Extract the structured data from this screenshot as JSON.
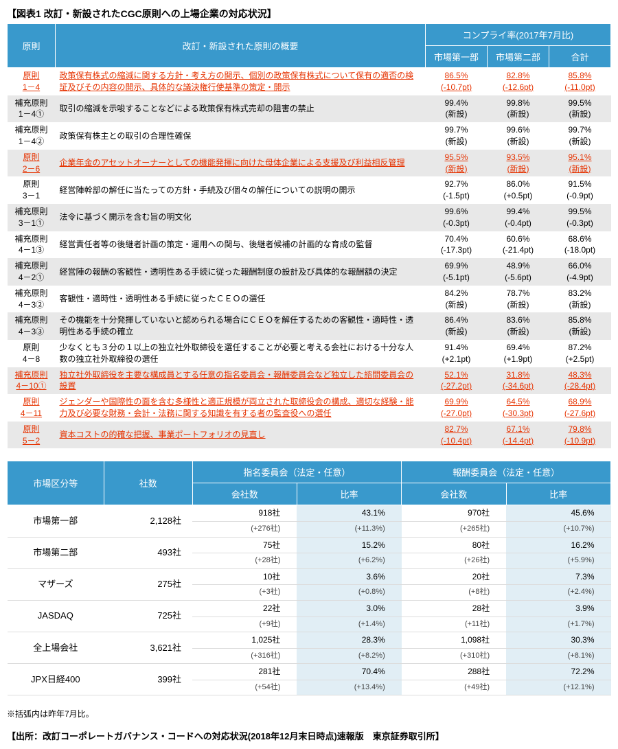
{
  "title": "【図表1 改訂・新設されたCGC原則への上場企業の対応状況】",
  "table1": {
    "headers": {
      "principle": "原則",
      "summary": "改訂・新設された原則の概要",
      "compliance_group": "コンプライ率(2017年7月比)",
      "market1": "市場第一部",
      "market2": "市場第二部",
      "total": "合計"
    },
    "rows": [
      {
        "principle": "原則\n1－4",
        "summary": "政策保有株式の縮減に関する方針・考え方の開示、個別の政策保有株式について保有の適否の検証及びその内容の開示、具体的な議決権行使基準の策定・開示",
        "m1": "86.5%",
        "m1d": "(-10.7pt)",
        "m2": "82.8%",
        "m2d": "(-12.6pt)",
        "t": "85.8%",
        "td": "(-11.0pt)",
        "hl": true
      },
      {
        "principle": "補充原則\n1－4①",
        "summary": "取引の縮減を示唆することなどによる政策保有株式売却の阻害の禁止",
        "m1": "99.4%",
        "m1d": "(新設)",
        "m2": "99.8%",
        "m2d": "(新設)",
        "t": "99.5%",
        "td": "(新設)"
      },
      {
        "principle": "補充原則\n1－4②",
        "summary": "政策保有株主との取引の合理性確保",
        "m1": "99.7%",
        "m1d": "(新設)",
        "m2": "99.6%",
        "m2d": "(新設)",
        "t": "99.7%",
        "td": "(新設)"
      },
      {
        "principle": "原則\n2－6",
        "summary": "企業年金のアセットオーナーとしての機能発揮に向けた母体企業による支援及び利益相反管理",
        "m1": "95.5%",
        "m1d": "(新設)",
        "m2": "93.5%",
        "m2d": "(新設)",
        "t": "95.1%",
        "td": "(新設)",
        "hl": true
      },
      {
        "principle": "原則\n3－1",
        "summary": "経営陣幹部の解任に当たっての方針・手続及び個々の解任についての説明の開示",
        "m1": "92.7%",
        "m1d": "(-1.5pt)",
        "m2": "86.0%",
        "m2d": "(+0.5pt)",
        "t": "91.5%",
        "td": "(-0.9pt)"
      },
      {
        "principle": "補充原則\n3－1①",
        "summary": "法令に基づく開示を含む旨の明文化",
        "m1": "99.6%",
        "m1d": "(-0.3pt)",
        "m2": "99.4%",
        "m2d": "(-0.4pt)",
        "t": "99.5%",
        "td": "(-0.3pt)"
      },
      {
        "principle": "補充原則\n4－1③",
        "summary": "経営責任者等の後継者計画の策定・運用への関与、後継者候補の計画的な育成の監督",
        "m1": "70.4%",
        "m1d": "(-17.3pt)",
        "m2": "60.6%",
        "m2d": "(-21.4pt)",
        "t": "68.6%",
        "td": "(-18.0pt)"
      },
      {
        "principle": "補充原則\n4－2①",
        "summary": "経営陣の報酬の客観性・透明性ある手続に従った報酬制度の設計及び具体的な報酬額の決定",
        "m1": "69.9%",
        "m1d": "(-5.1pt)",
        "m2": "48.9%",
        "m2d": "(-5.6pt)",
        "t": "66.0%",
        "td": "(-4.9pt)"
      },
      {
        "principle": "補充原則\n4－3②",
        "summary": "客観性・適時性・透明性ある手続に従ったＣＥＯの選任",
        "m1": "84.2%",
        "m1d": "(新設)",
        "m2": "78.7%",
        "m2d": "(新設)",
        "t": "83.2%",
        "td": "(新設)"
      },
      {
        "principle": "補充原則\n4－3③",
        "summary": "その機能を十分発揮していないと認められる場合にＣＥＯを解任するための客観性・適時性・透明性ある手続の確立",
        "m1": "86.4%",
        "m1d": "(新設)",
        "m2": "83.6%",
        "m2d": "(新設)",
        "t": "85.8%",
        "td": "(新設)"
      },
      {
        "principle": "原則\n4－8",
        "summary": "少なくとも３分の１以上の独立社外取締役を選任することが必要と考える会社における十分な人数の独立社外取締役の選任",
        "m1": "91.4%",
        "m1d": "(+2.1pt)",
        "m2": "69.4%",
        "m2d": "(+1.9pt)",
        "t": "87.2%",
        "td": "(+2.5pt)"
      },
      {
        "principle": "補充原則\n4－10①",
        "summary": "独立社外取締役を主要な構成員とする任意の指名委員会・報酬委員会など独立した諮問委員会の設置",
        "m1": "52.1%",
        "m1d": "(-27.2pt)",
        "m2": "31.8%",
        "m2d": "(-34.6pt)",
        "t": "48.3%",
        "td": "(-28.4pt)",
        "hl": true
      },
      {
        "principle": "原則\n4－11",
        "summary": "ジェンダーや国際性の面を含む多様性と適正規模が両立された取締役会の構成、適切な経験・能力及び必要な財務・会計・法務に関する知識を有する者の監査役への選任",
        "m1": "69.9%",
        "m1d": "(-27.0pt)",
        "m2": "64.5%",
        "m2d": "(-30.3pt)",
        "t": "68.9%",
        "td": "(-27.6pt)",
        "hl": true
      },
      {
        "principle": "原則\n5－2",
        "summary": "資本コストの的確な把握、事業ポートフォリオの見直し",
        "m1": "82.7%",
        "m1d": "(-10.4pt)",
        "m2": "67.1%",
        "m2d": "(-14.4pt)",
        "t": "79.8%",
        "td": "(-10.9pt)",
        "hl": true
      }
    ]
  },
  "table2": {
    "headers": {
      "market": "市場区分等",
      "count": "社数",
      "nom_group": "指名委員会（法定・任意）",
      "comp_group": "報酬委員会（法定・任意）",
      "companies": "会社数",
      "ratio": "比率"
    },
    "rows": [
      {
        "market": "市場第一部",
        "count": "2,128社",
        "nc": "918社",
        "nr": "43.1%",
        "ncd": "(+276社)",
        "nrd": "(+11.3%)",
        "cc": "970社",
        "cr": "45.6%",
        "ccd": "(+265社)",
        "crd": "(+10.7%)"
      },
      {
        "market": "市場第二部",
        "count": "493社",
        "nc": "75社",
        "nr": "15.2%",
        "ncd": "(+28社)",
        "nrd": "(+6.2%)",
        "cc": "80社",
        "cr": "16.2%",
        "ccd": "(+26社)",
        "crd": "(+5.9%)"
      },
      {
        "market": "マザーズ",
        "count": "275社",
        "nc": "10社",
        "nr": "3.6%",
        "ncd": "(+3社)",
        "nrd": "(+0.8%)",
        "cc": "20社",
        "cr": "7.3%",
        "ccd": "(+8社)",
        "crd": "(+2.4%)"
      },
      {
        "market": "JASDAQ",
        "count": "725社",
        "nc": "22社",
        "nr": "3.0%",
        "ncd": "(+9社)",
        "nrd": "(+1.4%)",
        "cc": "28社",
        "cr": "3.9%",
        "ccd": "(+11社)",
        "crd": "(+1.7%)"
      },
      {
        "market": "全上場会社",
        "count": "3,621社",
        "nc": "1,025社",
        "nr": "28.3%",
        "ncd": "(+316社)",
        "nrd": "(+8.2%)",
        "cc": "1,098社",
        "cr": "30.3%",
        "ccd": "(+310社)",
        "crd": "(+8.1%)"
      },
      {
        "market": "JPX日経400",
        "count": "399社",
        "nc": "281社",
        "nr": "70.4%",
        "ncd": "(+54社)",
        "nrd": "(+13.4%)",
        "cc": "288社",
        "cr": "72.2%",
        "ccd": "(+49社)",
        "crd": "(+12.1%)"
      }
    ]
  },
  "note": "※括弧内は昨年7月比。",
  "source": "【出所：改訂コーポレートガバナンス・コードへの対応状況(2018年12月末日時点)速報版　東京証券取引所】"
}
